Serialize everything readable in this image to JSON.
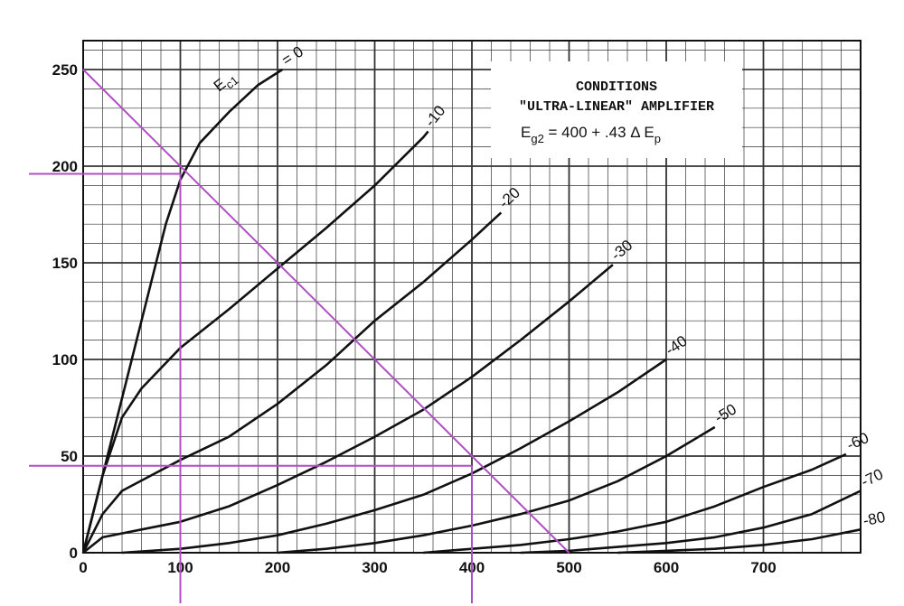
{
  "chart_data": {
    "type": "line",
    "title": "",
    "xlabel": "",
    "ylabel": "",
    "xlim": [
      0,
      800
    ],
    "ylim": [
      0,
      260
    ],
    "grid": true,
    "x_ticks": [
      "0",
      "100",
      "200",
      "300",
      "400",
      "500",
      "600",
      "700"
    ],
    "y_ticks": [
      "0",
      "50",
      "100",
      "150",
      "200",
      "250"
    ],
    "conditions": {
      "heading": "CONDITIONS",
      "subheading": "\"ULTRA-LINEAR\" AMPLIFIER",
      "eq_prefix": "E",
      "eq_sub": "g2",
      "eq_mid": " = 400 + .43 Δ E",
      "eq_sub2": "p"
    },
    "curve_label_prefix": "E",
    "curve_label_sub": "c1",
    "series": [
      {
        "name": "0",
        "label": "= 0",
        "points": [
          [
            0,
            0
          ],
          [
            25,
            50
          ],
          [
            45,
            90
          ],
          [
            65,
            130
          ],
          [
            85,
            170
          ],
          [
            100,
            193
          ],
          [
            120,
            212
          ],
          [
            150,
            228
          ],
          [
            180,
            242
          ],
          [
            205,
            250
          ]
        ]
      },
      {
        "name": "-10",
        "label": "-10",
        "points": [
          [
            0,
            0
          ],
          [
            20,
            40
          ],
          [
            40,
            70
          ],
          [
            60,
            85
          ],
          [
            100,
            106
          ],
          [
            150,
            126
          ],
          [
            200,
            147
          ],
          [
            250,
            168
          ],
          [
            300,
            190
          ],
          [
            350,
            215
          ],
          [
            355,
            218
          ]
        ]
      },
      {
        "name": "-20",
        "label": "-20",
        "points": [
          [
            0,
            0
          ],
          [
            20,
            20
          ],
          [
            40,
            32
          ],
          [
            70,
            40
          ],
          [
            100,
            48
          ],
          [
            150,
            60
          ],
          [
            200,
            77
          ],
          [
            250,
            97
          ],
          [
            300,
            120
          ],
          [
            350,
            140
          ],
          [
            400,
            162
          ],
          [
            430,
            176
          ]
        ]
      },
      {
        "name": "-30",
        "label": "-30",
        "points": [
          [
            0,
            0
          ],
          [
            20,
            8
          ],
          [
            60,
            12
          ],
          [
            100,
            16
          ],
          [
            150,
            24
          ],
          [
            200,
            35
          ],
          [
            250,
            47
          ],
          [
            300,
            60
          ],
          [
            350,
            74
          ],
          [
            400,
            91
          ],
          [
            450,
            110
          ],
          [
            500,
            130
          ],
          [
            545,
            149
          ]
        ]
      },
      {
        "name": "-40",
        "label": "-40",
        "points": [
          [
            40,
            0
          ],
          [
            100,
            2
          ],
          [
            150,
            5
          ],
          [
            200,
            9
          ],
          [
            250,
            15
          ],
          [
            300,
            22
          ],
          [
            350,
            30
          ],
          [
            400,
            41
          ],
          [
            450,
            54
          ],
          [
            500,
            68
          ],
          [
            550,
            83
          ],
          [
            600,
            100
          ]
        ]
      },
      {
        "name": "-50",
        "label": "-50",
        "points": [
          [
            200,
            0
          ],
          [
            250,
            2
          ],
          [
            300,
            5
          ],
          [
            350,
            9
          ],
          [
            400,
            14
          ],
          [
            450,
            20
          ],
          [
            500,
            27
          ],
          [
            550,
            37
          ],
          [
            600,
            50
          ],
          [
            650,
            65
          ]
        ]
      },
      {
        "name": "-60",
        "label": "-60",
        "points": [
          [
            350,
            0
          ],
          [
            400,
            2
          ],
          [
            450,
            4
          ],
          [
            500,
            7
          ],
          [
            550,
            11
          ],
          [
            600,
            16
          ],
          [
            650,
            24
          ],
          [
            700,
            34
          ],
          [
            750,
            43
          ],
          [
            785,
            51
          ]
        ]
      },
      {
        "name": "-70",
        "label": "-70",
        "points": [
          [
            450,
            0
          ],
          [
            500,
            1
          ],
          [
            550,
            3
          ],
          [
            600,
            5
          ],
          [
            650,
            8
          ],
          [
            700,
            13
          ],
          [
            750,
            20
          ],
          [
            800,
            32
          ]
        ]
      },
      {
        "name": "-80",
        "label": "-80",
        "points": [
          [
            550,
            0
          ],
          [
            600,
            1
          ],
          [
            650,
            2
          ],
          [
            700,
            4
          ],
          [
            750,
            7
          ],
          [
            800,
            12
          ]
        ]
      }
    ],
    "load_line": {
      "points": [
        [
          0,
          250
        ],
        [
          500,
          0
        ]
      ],
      "color": "#b04fc4"
    },
    "operating_points": [
      {
        "x": 100,
        "y": 196
      },
      {
        "x": 400,
        "y": 45
      }
    ],
    "curve_color": "#111111",
    "grid_color": "#333333",
    "annotation_color": "#b04fc4"
  }
}
